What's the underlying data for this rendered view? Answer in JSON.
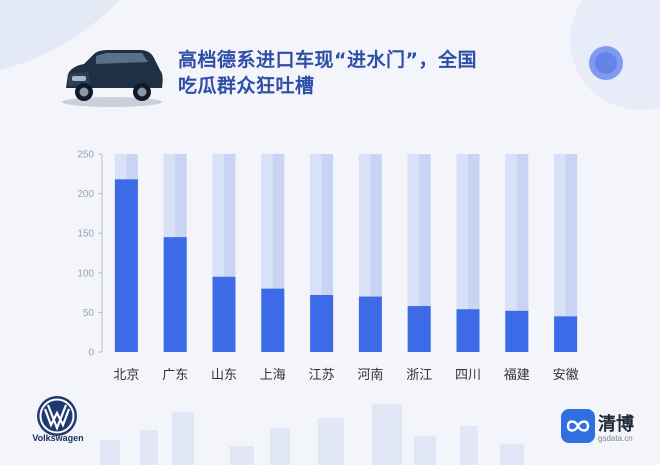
{
  "header": {
    "title_line1": "高档德系进口车现“进水门”，全国",
    "title_line2": "吃瓜群众狂吐槽"
  },
  "logos": {
    "car_icon": "car-image",
    "vw_text": "Volkswagen",
    "brand_name": "清博",
    "brand_url": "gsdata.cn"
  },
  "colors": {
    "bar": "#3d6ae6",
    "bar_bg": "#c9d4f5",
    "bar_bg_stripe": "#d9e1f8",
    "title": "#2f4ea8",
    "axis_text": "#9aa3b5",
    "category_text": "#333333"
  },
  "chart_data": {
    "type": "bar",
    "categories": [
      "北京",
      "广东",
      "山东",
      "上海",
      "江苏",
      "河南",
      "浙江",
      "四川",
      "福建",
      "安徽"
    ],
    "values": [
      218,
      145,
      95,
      80,
      72,
      70,
      58,
      54,
      52,
      45
    ],
    "ylim": [
      0,
      250
    ],
    "yticks": [
      0,
      50,
      100,
      150,
      200,
      250
    ],
    "grid": false,
    "legend": "none"
  }
}
